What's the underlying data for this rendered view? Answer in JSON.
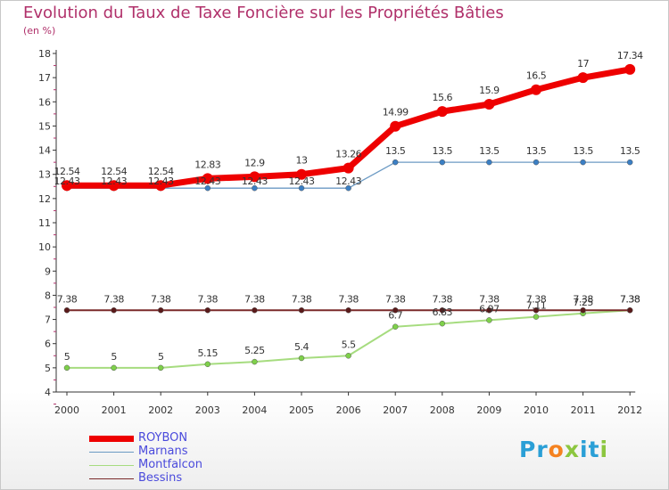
{
  "title": "Evolution du Taux de Taxe Foncière sur les Propriétés Bâties",
  "unit_label": "(en %)",
  "logo": {
    "text": "Proxiti",
    "letters": [
      "P",
      "r",
      "o",
      "x",
      "i",
      "t",
      "i"
    ],
    "colors": [
      "#2a9fd6",
      "#2a9fd6",
      "#f58220",
      "#8cc63f",
      "#2a9fd6",
      "#2a9fd6",
      "#8cc63f"
    ]
  },
  "chart_data": {
    "type": "line",
    "title": "Evolution du Taux de Taxe Foncière sur les Propriétés Bâties",
    "ylabel": "(en %)",
    "xlabel": "",
    "ylim": [
      4,
      18
    ],
    "yticks": [
      4,
      5,
      6,
      7,
      8,
      9,
      10,
      11,
      12,
      13,
      14,
      15,
      16,
      17,
      18
    ],
    "categories": [
      "2000",
      "2001",
      "2002",
      "2003",
      "2004",
      "2005",
      "2006",
      "2007",
      "2008",
      "2009",
      "2010",
      "2011",
      "2012"
    ],
    "series": [
      {
        "name": "ROYBON",
        "color": "#ee0000",
        "values": [
          12.54,
          12.54,
          12.54,
          12.83,
          12.9,
          13,
          13.26,
          14.99,
          15.6,
          15.9,
          16.5,
          17,
          17.34
        ],
        "labels": [
          "12.54",
          "12.54",
          "12.54",
          "12.83",
          "12.9",
          "13",
          "13.26",
          "14.99",
          "15.6",
          "15.9",
          "16.5",
          "17",
          "17.34"
        ]
      },
      {
        "name": "Marnans",
        "color": "#6b9ac4",
        "values": [
          12.43,
          12.43,
          12.43,
          12.43,
          12.43,
          12.43,
          12.43,
          13.5,
          13.5,
          13.5,
          13.5,
          13.5,
          13.5
        ],
        "labels": [
          "12.43",
          "12.43",
          "12.43",
          "12.43",
          "12.43",
          "12.43",
          "12.43",
          "13.5",
          "13.5",
          "13.5",
          "13.5",
          "13.5",
          "13.5"
        ]
      },
      {
        "name": "Montfalcon",
        "color": "#a6dc7f",
        "values": [
          5,
          5,
          5,
          5.15,
          5.25,
          5.4,
          5.5,
          6.7,
          6.83,
          6.97,
          7.11,
          7.25,
          7.38
        ],
        "labels": [
          "5",
          "5",
          "5",
          "5.15",
          "5.25",
          "5.4",
          "5.5",
          "6.7",
          "6.83",
          "6.97",
          "7.11",
          "7.25",
          "7.38"
        ]
      },
      {
        "name": "Bessins",
        "color": "#7a2a2a",
        "values": [
          7.38,
          7.38,
          7.38,
          7.38,
          7.38,
          7.38,
          7.38,
          7.38,
          7.38,
          7.38,
          7.38,
          7.38,
          7.38
        ],
        "labels": [
          "7.38",
          "7.38",
          "7.38",
          "7.38",
          "7.38",
          "7.38",
          "7.38",
          "7.38",
          "7.38",
          "7.38",
          "7.38",
          "7.38",
          "7.38"
        ]
      }
    ],
    "legend": [
      "ROYBON",
      "Marnans",
      "Montfalcon",
      "Bessins"
    ],
    "legend_position": "bottom-left",
    "grid": false
  }
}
